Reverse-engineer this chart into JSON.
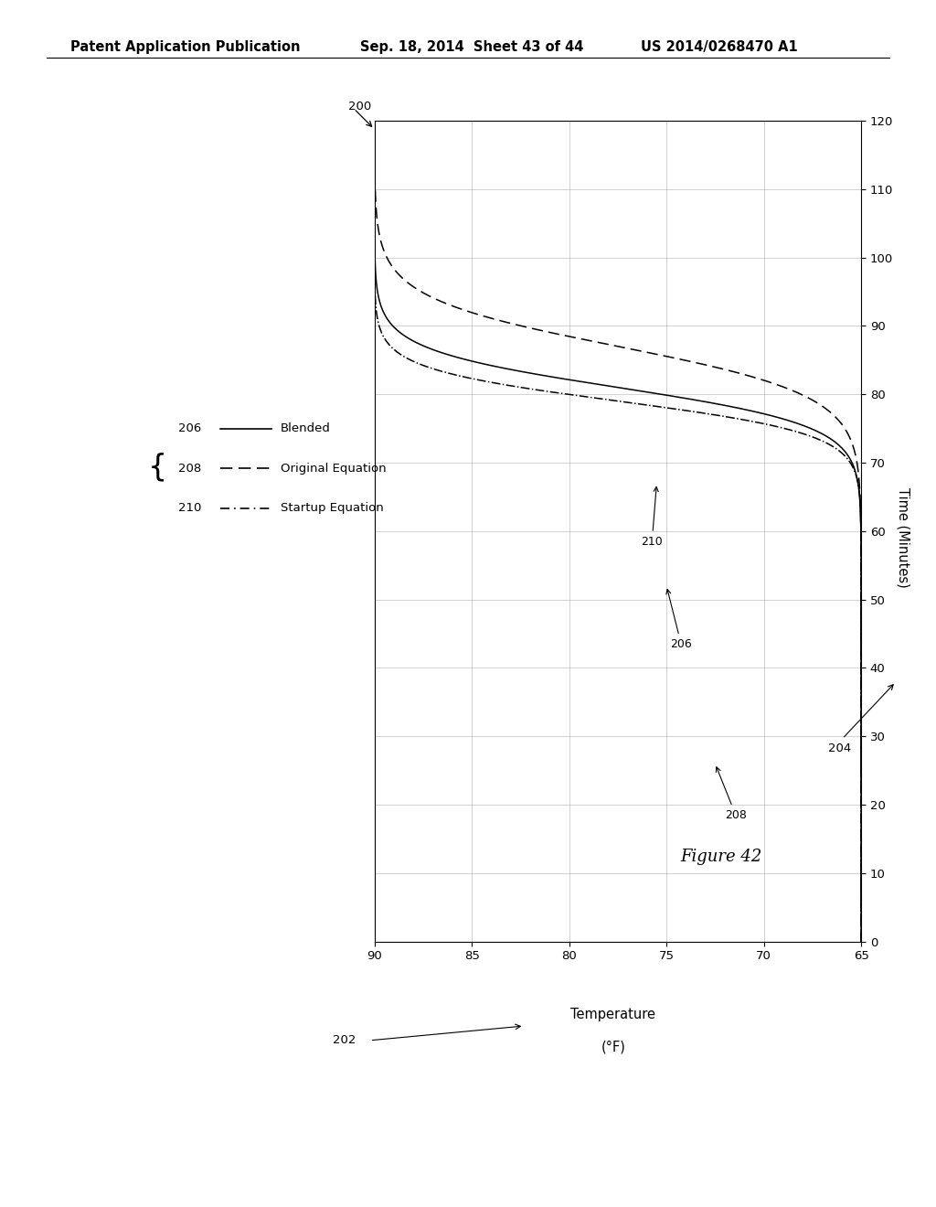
{
  "header_left": "Patent Application Publication",
  "header_mid": "Sep. 18, 2014  Sheet 43 of 44",
  "header_right": "US 2014/0268470 A1",
  "figure_label": "Figure 42",
  "temp_label_1": "Temperature",
  "temp_label_2": "(°F)",
  "time_label": "Time (Minutes)",
  "xlim_temp": [
    90,
    65
  ],
  "ylim_time": [
    0,
    120
  ],
  "xticks_temp": [
    90,
    85,
    80,
    75,
    70,
    65
  ],
  "yticks_time": [
    0,
    10,
    20,
    30,
    40,
    50,
    60,
    70,
    80,
    90,
    100,
    110,
    120
  ],
  "legend_entries": [
    {
      "ref": "206",
      "label": "Blended",
      "style": "solid"
    },
    {
      "ref": "208",
      "label": "Original Equation",
      "style": "dashed"
    },
    {
      "ref": "210",
      "label": "Startup Equation",
      "style": "dashdot"
    }
  ],
  "ref_200": "200",
  "ref_202": "202",
  "ref_204": "204",
  "background_color": "#ffffff"
}
